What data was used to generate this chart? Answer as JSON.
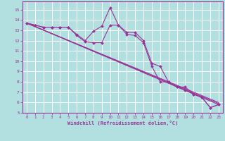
{
  "xlabel": "Windchill (Refroidissement éolien,°C)",
  "background_color": "#b2e0e0",
  "grid_color": "#ffffff",
  "line_color": "#993399",
  "spine_color": "#993399",
  "xlim": [
    -0.5,
    23.5
  ],
  "ylim": [
    5,
    15.8
  ],
  "xticks": [
    0,
    1,
    2,
    3,
    4,
    5,
    6,
    7,
    8,
    9,
    10,
    11,
    12,
    13,
    14,
    15,
    16,
    17,
    18,
    19,
    20,
    21,
    22,
    23
  ],
  "yticks": [
    5,
    6,
    7,
    8,
    9,
    10,
    11,
    12,
    13,
    14,
    15
  ],
  "line1": {
    "x": [
      0,
      1,
      2,
      3,
      4,
      5,
      6,
      7,
      8,
      9,
      10,
      11,
      12,
      13,
      14,
      15,
      16,
      17,
      18,
      19,
      20,
      21,
      22,
      23
    ],
    "y": [
      13.7,
      13.5,
      13.3,
      13.3,
      13.3,
      13.3,
      12.6,
      12.0,
      12.9,
      13.4,
      15.2,
      13.5,
      12.8,
      12.8,
      12.0,
      9.8,
      9.5,
      8.0,
      7.5,
      7.5,
      6.8,
      6.5,
      5.5,
      5.8
    ]
  },
  "line2": {
    "x": [
      0,
      1,
      2,
      3,
      4,
      5,
      6,
      7,
      8,
      9,
      10,
      11,
      12,
      13,
      14,
      15,
      16,
      17,
      18,
      19,
      20,
      21,
      22,
      23
    ],
    "y": [
      13.7,
      13.5,
      13.3,
      13.3,
      13.3,
      13.3,
      12.5,
      11.9,
      11.8,
      11.8,
      13.5,
      13.5,
      12.6,
      12.5,
      11.8,
      9.5,
      8.0,
      8.0,
      7.5,
      7.2,
      6.8,
      6.5,
      5.5,
      5.8
    ]
  },
  "trend1": {
    "x": [
      0,
      23
    ],
    "y": [
      13.7,
      5.8
    ]
  },
  "trend2": {
    "x": [
      0,
      23
    ],
    "y": [
      13.7,
      6.0
    ]
  },
  "trend3": {
    "x": [
      0,
      23
    ],
    "y": [
      13.7,
      5.9
    ]
  }
}
